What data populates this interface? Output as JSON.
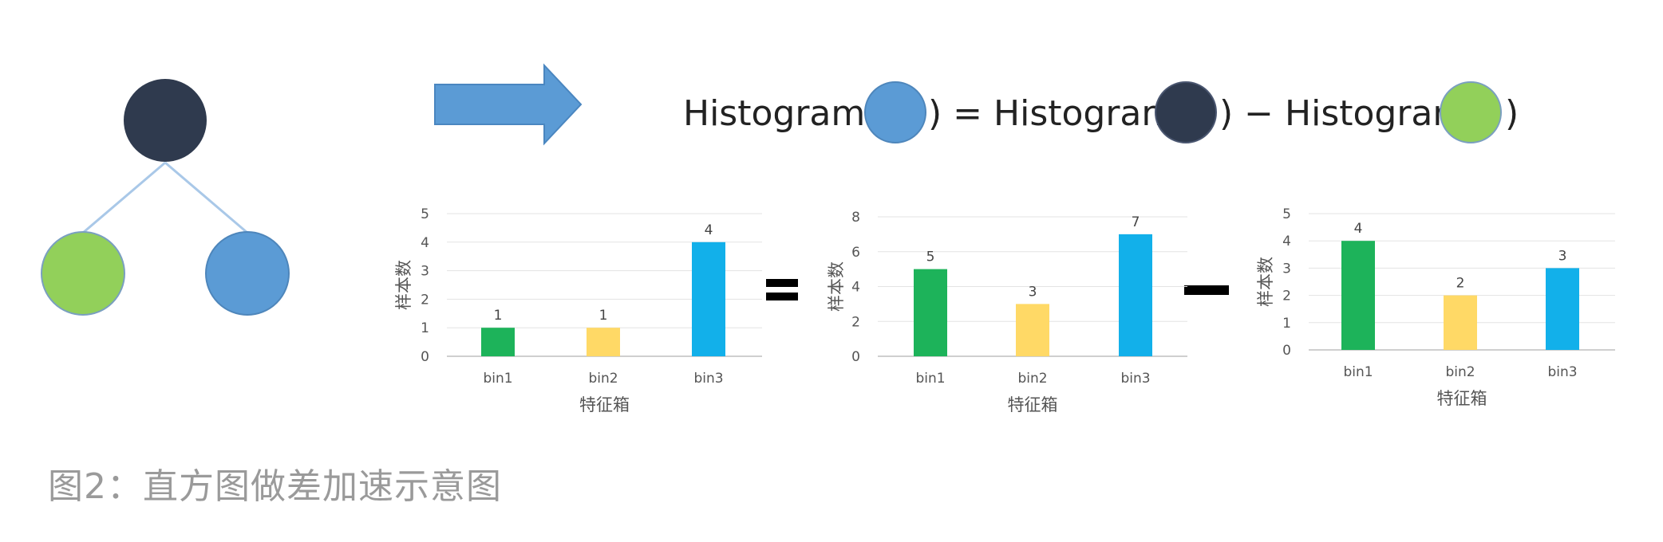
{
  "colors": {
    "node_dark": "#2f3a4e",
    "node_green": "#92d05a",
    "node_blue": "#5b9bd5",
    "arrow": "#5b9bd5",
    "edge": "#a9c8e8",
    "bar_bin1": "#1db35a",
    "bar_bin2": "#ffd966",
    "bar_bin3": "#12b0ea"
  },
  "formula": {
    "hist1": "Histogram (",
    "close1": ") = Histogram (",
    "close2": ") − Histogram(",
    "close3": ")"
  },
  "operators": {
    "equals": "=",
    "minus": "−"
  },
  "caption": "图2：直方图做差加速示意图",
  "chart_data": [
    {
      "type": "bar",
      "categories": [
        "bin1",
        "bin2",
        "bin3"
      ],
      "values": [
        1,
        1,
        4
      ],
      "ylim": [
        0,
        5
      ],
      "yticks": [
        0,
        1,
        2,
        3,
        4,
        5
      ],
      "xlabel": "特征箱",
      "ylabel": "样本数",
      "grid": true
    },
    {
      "type": "bar",
      "categories": [
        "bin1",
        "bin2",
        "bin3"
      ],
      "values": [
        5,
        3,
        7
      ],
      "ylim": [
        0,
        8
      ],
      "yticks": [
        0,
        2,
        4,
        6,
        8
      ],
      "xlabel": "特征箱",
      "ylabel": "样本数",
      "grid": true
    },
    {
      "type": "bar",
      "categories": [
        "bin1",
        "bin2",
        "bin3"
      ],
      "values": [
        4,
        2,
        3
      ],
      "ylim": [
        0,
        5
      ],
      "yticks": [
        0,
        1,
        2,
        3,
        4,
        5
      ],
      "xlabel": "特征箱",
      "ylabel": "样本数",
      "grid": true
    }
  ]
}
